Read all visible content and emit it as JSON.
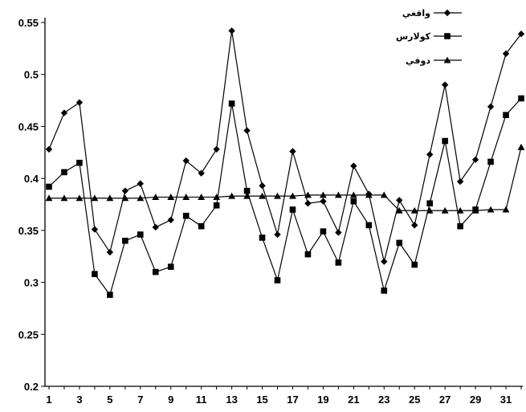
{
  "chart_data": {
    "type": "line",
    "x": [
      1,
      2,
      3,
      4,
      5,
      6,
      7,
      8,
      9,
      10,
      11,
      12,
      13,
      14,
      15,
      16,
      17,
      18,
      19,
      20,
      21,
      22,
      23,
      24,
      25,
      26,
      27,
      28,
      29,
      30,
      31,
      32
    ],
    "xticks": [
      "1",
      "3",
      "5",
      "7",
      "9",
      "11",
      "13",
      "15",
      "17",
      "19",
      "21",
      "23",
      "25",
      "27",
      "29",
      "31"
    ],
    "yticks": [
      "0.2",
      "0.25",
      "0.3",
      "0.35",
      "0.4",
      "0.45",
      "0.5",
      "0.55"
    ],
    "ylim": [
      0.2,
      0.55
    ],
    "xlim": [
      1,
      32
    ],
    "grid": false,
    "legend_position": "top-right",
    "series": [
      {
        "name": "واقعي",
        "marker": "diamond",
        "values": [
          0.428,
          0.463,
          0.473,
          0.351,
          0.329,
          0.388,
          0.395,
          0.353,
          0.36,
          0.417,
          0.405,
          0.428,
          0.542,
          0.446,
          0.393,
          0.346,
          0.426,
          0.376,
          0.378,
          0.348,
          0.412,
          0.385,
          0.32,
          0.379,
          0.355,
          0.423,
          0.49,
          0.397,
          0.418,
          0.469,
          0.52,
          0.539
        ]
      },
      {
        "name": "كولارس",
        "marker": "square",
        "values": [
          0.392,
          0.406,
          0.415,
          0.308,
          0.288,
          0.34,
          0.346,
          0.31,
          0.315,
          0.364,
          0.354,
          0.374,
          0.472,
          0.388,
          0.343,
          0.302,
          0.37,
          0.327,
          0.349,
          0.319,
          0.378,
          0.355,
          0.292,
          0.338,
          0.317,
          0.376,
          0.436,
          0.354,
          0.37,
          0.416,
          0.461,
          0.477
        ]
      },
      {
        "name": "دوفي",
        "marker": "triangle",
        "values": [
          0.381,
          0.381,
          0.381,
          0.381,
          0.381,
          0.381,
          0.381,
          0.382,
          0.382,
          0.382,
          0.382,
          0.382,
          0.383,
          0.383,
          0.383,
          0.383,
          0.383,
          0.384,
          0.384,
          0.384,
          0.384,
          0.384,
          0.384,
          0.369,
          0.369,
          0.369,
          0.369,
          0.369,
          0.369,
          0.37,
          0.37,
          0.43
        ]
      }
    ]
  }
}
